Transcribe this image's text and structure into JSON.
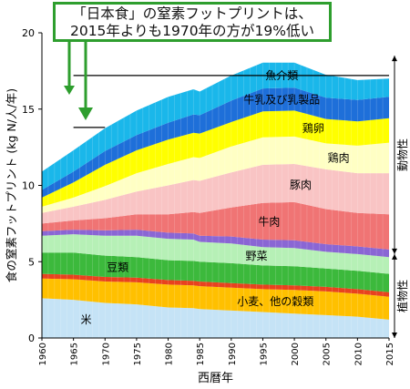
{
  "callout": {
    "line1": "「日本食」の窒素フットプリントは、",
    "line2": "2015年よりも1970年の方が19%低い"
  },
  "chart_data": {
    "type": "area",
    "subtype": "stacked",
    "title": "",
    "xlabel": "西暦年",
    "ylabel": "食の窒素フットプリント (kg N/人/年)",
    "xlim": [
      1960,
      2015
    ],
    "ylim": [
      0,
      20
    ],
    "yticks": [
      0,
      5,
      10,
      15,
      20
    ],
    "xticks": [
      1960,
      1965,
      1970,
      1975,
      1980,
      1985,
      1990,
      1995,
      2000,
      2005,
      2010,
      2015
    ],
    "x": [
      1960,
      1965,
      1970,
      1975,
      1980,
      1984,
      1985,
      1990,
      1995,
      2000,
      2005,
      2010,
      2015
    ],
    "series": [
      {
        "name": "米",
        "color": "#c5e3f6",
        "values": [
          2.6,
          2.5,
          2.3,
          2.2,
          2.0,
          1.95,
          1.9,
          1.8,
          1.7,
          1.6,
          1.5,
          1.4,
          1.2
        ]
      },
      {
        "name": "小麦、他の穀類",
        "color": "#ffc000",
        "values": [
          1.3,
          1.35,
          1.4,
          1.45,
          1.5,
          1.5,
          1.5,
          1.5,
          1.5,
          1.55,
          1.55,
          1.5,
          1.5
        ]
      },
      {
        "name": "",
        "color": "#e8421e",
        "values": [
          0.3,
          0.3,
          0.3,
          0.3,
          0.3,
          0.3,
          0.3,
          0.3,
          0.3,
          0.3,
          0.3,
          0.3,
          0.3
        ]
      },
      {
        "name": "豆類",
        "color": "#3cb93c",
        "values": [
          1.4,
          1.45,
          1.4,
          1.35,
          1.3,
          1.3,
          1.3,
          1.3,
          1.25,
          1.25,
          1.2,
          1.2,
          1.2
        ]
      },
      {
        "name": "野菜",
        "color": "#b6f0b6",
        "values": [
          1.1,
          1.2,
          1.3,
          1.4,
          1.4,
          1.4,
          1.3,
          1.3,
          1.2,
          1.2,
          1.1,
          1.1,
          1.1
        ]
      },
      {
        "name": "",
        "color": "#8a66d4",
        "values": [
          0.3,
          0.3,
          0.35,
          0.4,
          0.4,
          0.4,
          0.4,
          0.45,
          0.5,
          0.5,
          0.5,
          0.5,
          0.5
        ]
      },
      {
        "name": "牛肉",
        "color": "#f07474",
        "values": [
          0.5,
          0.6,
          0.8,
          1.0,
          1.2,
          1.4,
          1.5,
          1.9,
          2.4,
          2.5,
          2.3,
          2.2,
          2.3
        ]
      },
      {
        "name": "豚肉",
        "color": "#f9c4c4",
        "values": [
          0.7,
          0.9,
          1.2,
          1.5,
          1.9,
          2.1,
          2.1,
          2.3,
          2.5,
          2.5,
          2.6,
          2.6,
          2.7
        ]
      },
      {
        "name": "鶏肉",
        "color": "#ffffc4",
        "values": [
          0.4,
          0.6,
          0.9,
          1.2,
          1.4,
          1.5,
          1.5,
          1.7,
          1.8,
          1.8,
          1.7,
          1.8,
          2.0
        ]
      },
      {
        "name": "鶏卵",
        "color": "#ffff00",
        "values": [
          0.6,
          1.0,
          1.4,
          1.5,
          1.6,
          1.6,
          1.6,
          1.6,
          1.7,
          1.7,
          1.6,
          1.6,
          1.6
        ]
      },
      {
        "name": "牛乳及び乳製品",
        "color": "#1e6fd9",
        "values": [
          0.5,
          0.7,
          0.9,
          1.0,
          1.1,
          1.2,
          1.2,
          1.4,
          1.5,
          1.5,
          1.4,
          1.4,
          1.4
        ]
      },
      {
        "name": "魚介類",
        "color": "#1ab7ea",
        "values": [
          1.2,
          1.4,
          1.5,
          1.6,
          1.7,
          1.65,
          1.55,
          1.65,
          1.7,
          1.65,
          1.5,
          1.3,
          1.2
        ]
      }
    ],
    "reference_lines": [
      {
        "value": 17.2,
        "x_from": 1965,
        "x_to": 2015
      },
      {
        "value": 13.8,
        "x_from": 1965,
        "x_to": 1970
      }
    ],
    "group_labels": [
      {
        "label": "動物性",
        "from": 5.5,
        "to": 18.5
      },
      {
        "label": "植物性",
        "from": 0,
        "to": 5.5
      }
    ],
    "grid": false
  }
}
